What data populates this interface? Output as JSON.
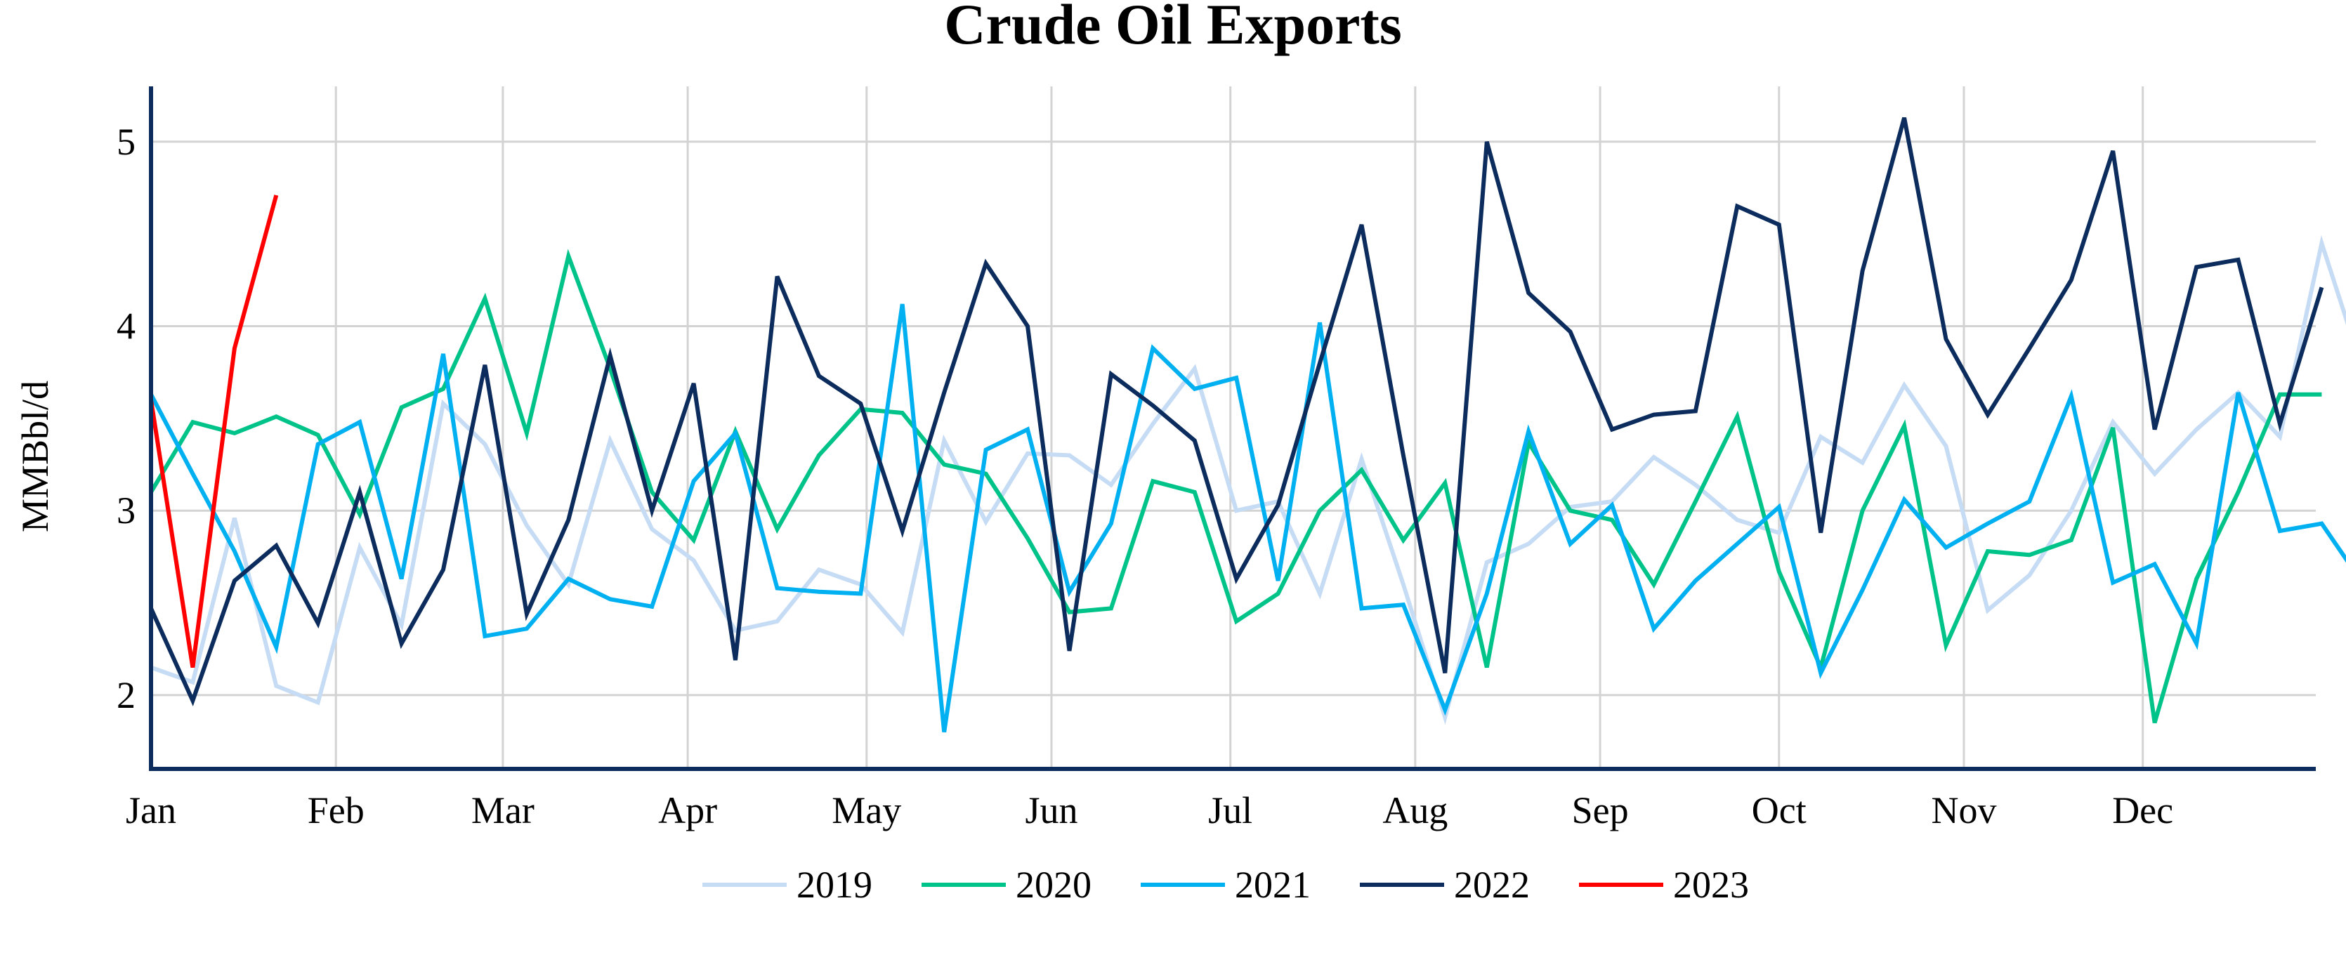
{
  "chart_data": {
    "type": "line",
    "title": "Crude Oil Exports",
    "ylabel": "MMBbl/d",
    "xlabel": "",
    "x_ticks": [
      "Jan",
      "Feb",
      "Mar",
      "Apr",
      "May",
      "Jun",
      "Jul",
      "Aug",
      "Sep",
      "Oct",
      "Nov",
      "Dec"
    ],
    "y_ticks": [
      2,
      3,
      4,
      5
    ],
    "ylim": [
      1.6,
      5.3
    ],
    "x_interval": "weekly",
    "grid": true,
    "legend_position": "bottom",
    "series": [
      {
        "name": "2019",
        "color": "#c6dcf5",
        "values": [
          2.15,
          2.07,
          2.96,
          2.05,
          1.96,
          2.8,
          2.38,
          3.58,
          3.36,
          2.92,
          2.6,
          3.38,
          2.9,
          2.73,
          2.35,
          2.4,
          2.68,
          2.6,
          2.34,
          3.38,
          2.94,
          3.31,
          3.3,
          3.14,
          3.47,
          3.77,
          3.0,
          3.05,
          2.55,
          3.28,
          2.6,
          1.88,
          2.72,
          2.82,
          3.02,
          3.05,
          3.29,
          3.14,
          2.95,
          2.88,
          3.4,
          3.26,
          3.68,
          3.35,
          2.46,
          2.65,
          3.0,
          3.48,
          3.2,
          3.44,
          3.64,
          3.4,
          4.45,
          3.75
        ]
      },
      {
        "name": "2020",
        "color": "#00c389",
        "values": [
          3.1,
          3.48,
          3.42,
          3.51,
          3.41,
          2.98,
          3.56,
          3.66,
          4.15,
          3.42,
          4.38,
          3.77,
          3.1,
          2.84,
          3.43,
          2.9,
          3.3,
          3.55,
          3.53,
          3.25,
          3.2,
          2.85,
          2.45,
          2.47,
          3.16,
          3.1,
          2.4,
          2.55,
          3.0,
          3.22,
          2.84,
          3.15,
          2.15,
          3.37,
          3.0,
          2.95,
          2.6,
          3.05,
          3.51,
          2.67,
          2.15,
          3.0,
          3.46,
          2.27,
          2.78,
          2.76,
          2.84,
          3.45,
          1.85,
          2.63,
          3.1,
          3.63,
          3.63
        ]
      },
      {
        "name": "2021",
        "color": "#00b0f0",
        "values": [
          3.63,
          3.2,
          2.78,
          2.26,
          3.36,
          3.48,
          2.63,
          3.85,
          2.32,
          2.36,
          2.63,
          2.52,
          2.48,
          3.16,
          3.42,
          2.58,
          2.56,
          2.55,
          4.12,
          1.8,
          3.33,
          3.44,
          2.56,
          2.93,
          3.88,
          3.66,
          3.72,
          2.62,
          4.02,
          2.47,
          2.49,
          1.92,
          2.55,
          3.43,
          2.82,
          3.03,
          2.36,
          2.62,
          2.82,
          3.02,
          2.12,
          2.57,
          3.06,
          2.8,
          2.93,
          3.05,
          3.62,
          2.61,
          2.71,
          2.28,
          3.64,
          2.89,
          2.93,
          2.6
        ]
      },
      {
        "name": "2022",
        "color": "#0b2c5c",
        "values": [
          2.47,
          1.97,
          2.62,
          2.81,
          2.39,
          3.1,
          2.28,
          2.68,
          3.79,
          2.44,
          2.95,
          3.84,
          3.0,
          3.69,
          2.19,
          4.27,
          3.73,
          3.58,
          2.89,
          3.64,
          4.34,
          4.0,
          2.24,
          3.74,
          3.57,
          3.38,
          2.63,
          3.03,
          3.8,
          4.55,
          3.3,
          2.12,
          5.0,
          4.18,
          3.97,
          3.44,
          3.52,
          3.54,
          4.65,
          4.55,
          2.88,
          4.3,
          5.13,
          3.93,
          3.52,
          3.88,
          4.25,
          4.95,
          3.44,
          4.32,
          4.36,
          3.47,
          4.21
        ]
      },
      {
        "name": "2023",
        "color": "#ff0000",
        "values": [
          3.6,
          2.15,
          3.88,
          4.71
        ]
      }
    ]
  }
}
